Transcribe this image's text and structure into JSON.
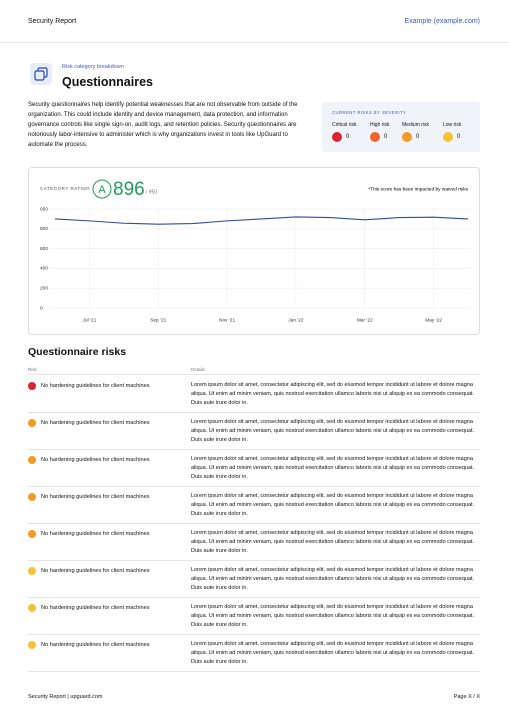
{
  "header": {
    "title": "Security Report",
    "site": "Example (example.com)"
  },
  "section": {
    "eyebrow": "Risk category breakdown",
    "title": "Questionnaires",
    "description": "Security questionnaires help identify potential weaknesses that are not observable from outside of the organization. This could include identity and device management, data protection, and information governance controls like single sign-on, audit logs, and retention policies. Security questionnaires are notoriously labor-intensive to administer which is why organizations invest in tools like UpGuard to automate the process."
  },
  "severity": {
    "title": "CURRENT RISKS BY SEVERITY",
    "items": [
      {
        "label": "Critical risk",
        "count": 0,
        "color": "#d9252e"
      },
      {
        "label": "High risk",
        "count": 0,
        "color": "#f0662a"
      },
      {
        "label": "Medium risk",
        "count": 0,
        "color": "#f49a28"
      },
      {
        "label": "Low risk",
        "count": 0,
        "color": "#f6c235"
      }
    ]
  },
  "chart_data": {
    "type": "line",
    "rating_label": "CATEGORY RATING",
    "grade": "A",
    "score": 896,
    "score_max_label": "/ 950",
    "note": "*This score has been impacted by waived risks",
    "categories": [
      null,
      "Jul '21",
      null,
      "Sep '21",
      null,
      "Nov '21",
      null,
      "Jan '22",
      null,
      "Mar '22",
      null,
      "May '22",
      null
    ],
    "values": [
      875,
      860,
      842,
      835,
      840,
      860,
      875,
      890,
      885,
      868,
      885,
      888,
      875
    ],
    "color": "#2c4aa8",
    "ylim": [
      0,
      950
    ],
    "yticks": [
      0,
      200,
      400,
      600,
      800,
      950
    ],
    "grid": true
  },
  "risks": {
    "title": "Questionnaire risks",
    "columns": [
      "Risk",
      "Details"
    ],
    "rows": [
      {
        "color": "#d9252e",
        "title": "No hardening guidelines for client machines",
        "details": "Lorem ipsum dolor sit amet, consectetur adipiscing elit, sed do eiusmod tempor incididunt ut labore et dolore magna aliqua. Ut enim ad minim veniam, quis nostrud exercitation ullamco laboris nisi ut aliquip ex ea commodo consequat. Duis aute irure dolor in."
      },
      {
        "color": "#f49a28",
        "title": "No hardening guidelines for client machines",
        "details": "Lorem ipsum dolor sit amet, consectetur adipiscing elit, sed do eiusmod tempor incididunt ut labore et dolore magna aliqua. Ut enim ad minim veniam, quis nostrud exercitation ullamco laboris nisi ut aliquip ex ea commodo consequat. Duis aute irure dolor in."
      },
      {
        "color": "#f49a28",
        "title": "No hardening guidelines for client machines",
        "details": "Lorem ipsum dolor sit amet, consectetur adipiscing elit, sed do eiusmod tempor incididunt ut labore et dolore magna aliqua. Ut enim ad minim veniam, quis nostrud exercitation ullamco laboris nisi ut aliquip ex ea commodo consequat. Duis aute irure dolor in."
      },
      {
        "color": "#f49a28",
        "title": "No hardening guidelines for client machines",
        "details": "Lorem ipsum dolor sit amet, consectetur adipiscing elit, sed do eiusmod tempor incididunt ut labore et dolore magna aliqua. Ut enim ad minim veniam, quis nostrud exercitation ullamco laboris nisi ut aliquip ex ea commodo consequat. Duis aute irure dolor in."
      },
      {
        "color": "#f49a28",
        "title": "No hardening guidelines for client machines",
        "details": "Lorem ipsum dolor sit amet, consectetur adipiscing elit, sed do eiusmod tempor incididunt ut labore et dolore magna aliqua. Ut enim ad minim veniam, quis nostrud exercitation ullamco laboris nisi ut aliquip ex ea commodo consequat. Duis aute irure dolor in."
      },
      {
        "color": "#f6c235",
        "title": "No hardening guidelines for client machines",
        "details": "Lorem ipsum dolor sit amet, consectetur adipiscing elit, sed do eiusmod tempor incididunt ut labore et dolore magna aliqua. Ut enim ad minim veniam, quis nostrud exercitation ullamco laboris nisi ut aliquip ex ea commodo consequat. Duis aute irure dolor in."
      },
      {
        "color": "#f6c235",
        "title": "No hardening guidelines for client machines",
        "details": "Lorem ipsum dolor sit amet, consectetur adipiscing elit, sed do eiusmod tempor incididunt ut labore et dolore magna aliqua. Ut enim ad minim veniam, quis nostrud exercitation ullamco laboris nisi ut aliquip ex ea commodo consequat. Duis aute irure dolor in."
      },
      {
        "color": "#f6c235",
        "title": "No hardening guidelines for client machines",
        "details": "Lorem ipsum dolor sit amet, consectetur adipiscing elit, sed do eiusmod tempor incididunt ut labore et dolore magna aliqua. Ut enim ad minim veniam, quis nostrud exercitation ullamco laboris nisi ut aliquip ex ea commodo consequat. Duis aute irure dolor in."
      }
    ]
  },
  "footer": {
    "left": "Security Report | upguard.com",
    "right": "Page X / X"
  }
}
